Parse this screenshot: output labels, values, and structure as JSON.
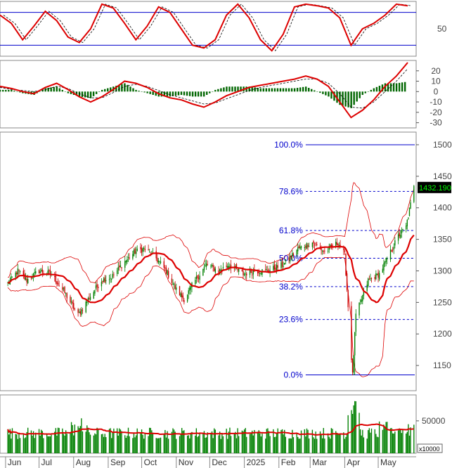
{
  "chart_data": {
    "type": "financial-multi-panel",
    "price_panel": {
      "type": "candlestick",
      "ylim": [
        1110,
        1520
      ],
      "yticks": [
        1150,
        1200,
        1250,
        1300,
        1350,
        1400,
        1450,
        1500
      ],
      "last_price_label": "1432.190",
      "fibonacci_levels": [
        {
          "label": "100.0%",
          "price": 1500
        },
        {
          "label": "78.6%",
          "price": 1426
        },
        {
          "label": "61.8%",
          "price": 1364
        },
        {
          "label": "50.0%",
          "price": 1320
        },
        {
          "label": "38.2%",
          "price": 1275
        },
        {
          "label": "23.6%",
          "price": 1223
        },
        {
          "label": "0.0%",
          "price": 1135
        }
      ],
      "fib_start_date": "2025-02-25",
      "close_anchors": [
        [
          "2024-06-03",
          1280
        ],
        [
          "2024-06-12",
          1300
        ],
        [
          "2024-06-20",
          1285
        ],
        [
          "2024-07-01",
          1300
        ],
        [
          "2024-07-12",
          1295
        ],
        [
          "2024-07-24",
          1265
        ],
        [
          "2024-08-05",
          1230
        ],
        [
          "2024-08-14",
          1255
        ],
        [
          "2024-08-26",
          1285
        ],
        [
          "2024-09-04",
          1290
        ],
        [
          "2024-09-16",
          1315
        ],
        [
          "2024-09-25",
          1330
        ],
        [
          "2024-10-03",
          1335
        ],
        [
          "2024-10-14",
          1320
        ],
        [
          "2024-10-23",
          1300
        ],
        [
          "2024-11-01",
          1270
        ],
        [
          "2024-11-08",
          1255
        ],
        [
          "2024-11-18",
          1285
        ],
        [
          "2024-11-28",
          1310
        ],
        [
          "2024-12-09",
          1300
        ],
        [
          "2024-12-18",
          1310
        ],
        [
          "2024-12-31",
          1295
        ],
        [
          "2025-01-10",
          1300
        ],
        [
          "2025-01-22",
          1300
        ],
        [
          "2025-02-05",
          1310
        ],
        [
          "2025-02-18",
          1335
        ],
        [
          "2025-03-03",
          1345
        ],
        [
          "2025-03-14",
          1330
        ],
        [
          "2025-03-26",
          1345
        ],
        [
          "2025-04-01",
          1325
        ],
        [
          "2025-04-08",
          1135
        ],
        [
          "2025-04-11",
          1230
        ],
        [
          "2025-04-22",
          1285
        ],
        [
          "2025-05-02",
          1295
        ],
        [
          "2025-05-12",
          1330
        ],
        [
          "2025-05-19",
          1355
        ],
        [
          "2025-05-26",
          1370
        ],
        [
          "2025-06-02",
          1432
        ]
      ]
    },
    "stochastic_panel": {
      "type": "line",
      "ylim": [
        0,
        100
      ],
      "yticks": [
        50
      ],
      "levels": [
        80,
        20
      ],
      "series": [
        {
          "values": [
            75,
            60,
            30,
            55,
            82,
            65,
            35,
            25,
            50,
            95,
            88,
            60,
            30,
            55,
            90,
            80,
            50,
            20,
            15,
            30,
            75,
            95,
            70,
            30,
            10,
            40,
            90,
            95,
            92,
            88,
            70,
            20,
            50,
            60,
            75,
            95,
            92
          ]
        }
      ]
    },
    "macd_panel": {
      "type": "line+histogram",
      "ylim": [
        -35,
        30
      ],
      "yticks": [
        20,
        10,
        0,
        -10,
        -20,
        -30
      ],
      "series": [
        {
          "values": [
            5,
            3,
            0,
            -2,
            4,
            8,
            2,
            -5,
            -10,
            -5,
            2,
            10,
            8,
            4,
            -2,
            -6,
            -8,
            -12,
            -15,
            -10,
            -4,
            0,
            4,
            6,
            8,
            10,
            12,
            15,
            12,
            5,
            -10,
            -25,
            -18,
            -8,
            5,
            15,
            28
          ]
        },
        {
          "values": [
            4,
            2,
            1,
            0,
            2,
            5,
            3,
            -2,
            -6,
            -6,
            -1,
            5,
            7,
            5,
            1,
            -3,
            -6,
            -9,
            -12,
            -11,
            -7,
            -3,
            1,
            4,
            6,
            8,
            10,
            12,
            12,
            8,
            -2,
            -15,
            -16,
            -10,
            0,
            10,
            22
          ]
        }
      ]
    },
    "volume_panel": {
      "type": "bar",
      "ylim": [
        0,
        90000
      ],
      "yticks": [
        50000
      ],
      "unit_label": "x10000"
    },
    "x_axis": {
      "ticks": [
        {
          "label": "Jun",
          "date": "2024-06-01"
        },
        {
          "label": "Jul",
          "date": "2024-07-01"
        },
        {
          "label": "Aug",
          "date": "2024-08-01"
        },
        {
          "label": "Sep",
          "date": "2024-09-01"
        },
        {
          "label": "Oct",
          "date": "2024-10-01"
        },
        {
          "label": "Nov",
          "date": "2024-11-01"
        },
        {
          "label": "Dec",
          "date": "2024-12-01"
        },
        {
          "label": "2025",
          "date": "2025-01-01"
        },
        {
          "label": "Feb",
          "date": "2025-02-01"
        },
        {
          "label": "Mar",
          "date": "2025-03-01"
        },
        {
          "label": "Apr",
          "date": "2025-04-01"
        },
        {
          "label": "May",
          "date": "2025-05-01"
        }
      ]
    },
    "colors": {
      "up": "#008000",
      "down": "#cc0000",
      "ma": "#dd0000",
      "fib": "#0000cc",
      "last_price_bg": "#000000",
      "last_price_text": "#00ff00"
    }
  }
}
